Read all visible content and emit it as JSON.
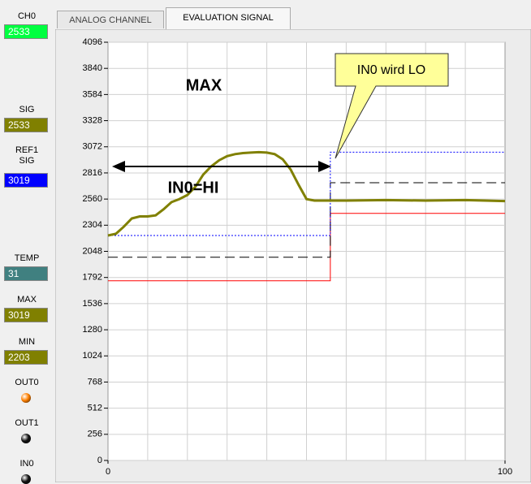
{
  "tabs": [
    "ANALOG CHANNEL",
    "EVALUATION SIGNAL"
  ],
  "displays": [
    {
      "label": "CH0",
      "value": 2533,
      "color": "#00ff40",
      "text_color": "#ffffff"
    },
    {
      "label": "SIG",
      "value": 2533,
      "color": "#808000",
      "text_color": "#ffffff"
    },
    {
      "label": "REF1 SIG",
      "value": 3019,
      "color": "#0000ff",
      "text_color": "#ffffff"
    },
    {
      "label": "TEMP",
      "value": 31,
      "color": "#408080",
      "text_color": "#ffffff"
    },
    {
      "label": "MAX",
      "value": 3019,
      "color": "#808000",
      "text_color": "#ffffff"
    },
    {
      "label": "MIN",
      "value": 2203,
      "color": "#808000",
      "text_color": "#ffffff"
    }
  ],
  "leds": [
    {
      "label": "OUT0",
      "color": "#ff8000"
    },
    {
      "label": "OUT1",
      "color": "#111111"
    },
    {
      "label": "IN0",
      "color": "#111111"
    }
  ],
  "chart_data": {
    "type": "line",
    "xlim": [
      0,
      100
    ],
    "xticks": [
      0,
      100
    ],
    "xgrid": [
      10,
      20,
      30,
      40,
      50,
      60,
      70,
      80,
      90
    ],
    "ylim": [
      0,
      4096
    ],
    "yticks": [
      0,
      256,
      512,
      768,
      1024,
      1280,
      1536,
      1792,
      2048,
      2304,
      2560,
      2816,
      3072,
      3328,
      3584,
      3840,
      4096
    ],
    "grid": true,
    "series": [
      {
        "color": "#ff0000",
        "width": 1,
        "dash": "",
        "x": [
          0,
          56,
          56,
          100
        ],
        "values": [
          1760,
          1760,
          2420,
          2420
        ]
      },
      {
        "color": "#000000",
        "width": 1,
        "dash": "12 6",
        "x": [
          0,
          56,
          56,
          100
        ],
        "values": [
          1990,
          1990,
          2720,
          2720
        ]
      },
      {
        "color": "#0000ff",
        "width": 1,
        "dash": "2 2",
        "x": [
          0,
          56,
          56,
          100
        ],
        "values": [
          2203,
          2203,
          3019,
          3019
        ]
      },
      {
        "color": "#808000",
        "width": 3,
        "dash": "",
        "x": [
          0,
          2,
          4,
          6,
          8,
          10,
          12,
          14,
          16,
          18,
          20,
          22,
          24,
          26,
          28,
          30,
          32,
          34,
          36,
          38,
          40,
          42,
          44,
          46,
          48,
          50,
          52,
          54,
          60,
          70,
          80,
          90,
          100
        ],
        "values": [
          2203,
          2220,
          2290,
          2370,
          2390,
          2390,
          2400,
          2460,
          2530,
          2560,
          2600,
          2680,
          2800,
          2880,
          2940,
          2980,
          3000,
          3010,
          3015,
          3019,
          3015,
          3000,
          2950,
          2850,
          2700,
          2560,
          2545,
          2545,
          2545,
          2550,
          2545,
          2550,
          2540
        ]
      }
    ],
    "annotations": [
      "MAX",
      "IN0=HI",
      "IN0 wird LO"
    ]
  }
}
